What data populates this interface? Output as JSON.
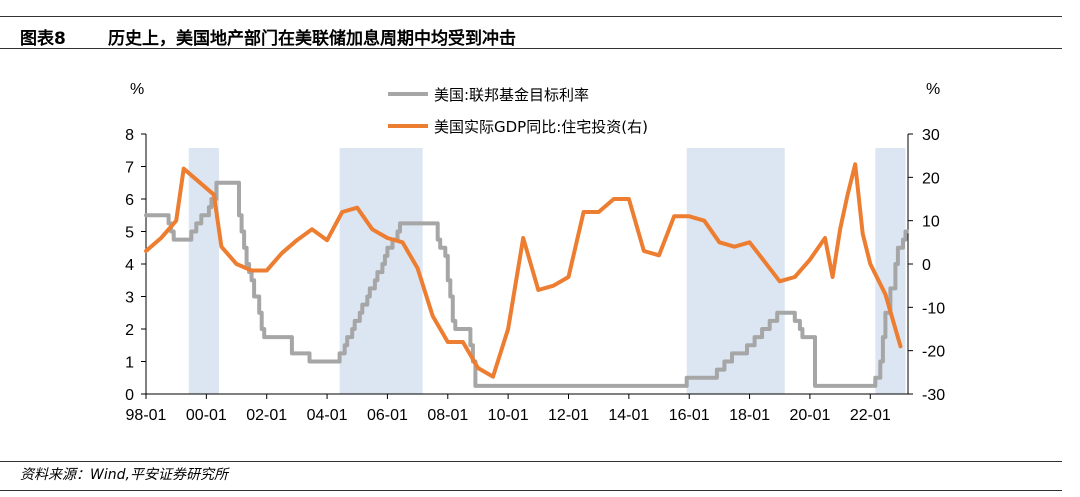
{
  "header": {
    "fig_label": "图表8",
    "title": "历史上，美国地产部门在美联储加息周期中均受到冲击"
  },
  "footer": {
    "source": "资料来源：Wind,平安证券研究所"
  },
  "colors": {
    "fed_rate": "#a6a6a6",
    "gdp_residential": "#ed7d31",
    "shade": "#dce6f2"
  },
  "chart_data": {
    "type": "line",
    "x_ticks": [
      "98-01",
      "00-01",
      "02-01",
      "04-01",
      "06-01",
      "08-01",
      "10-01",
      "12-01",
      "14-01",
      "16-01",
      "18-01",
      "20-01",
      "22-01"
    ],
    "left_axis": {
      "unit": "%",
      "range": [
        0,
        8
      ],
      "ticks": [
        "0",
        "1",
        "2",
        "3",
        "4",
        "5",
        "6",
        "7",
        "8"
      ]
    },
    "right_axis": {
      "unit": "%",
      "range": [
        -30,
        30
      ],
      "ticks": [
        "-30",
        "-20",
        "-10",
        "0",
        "10",
        "20",
        "30"
      ]
    },
    "legend_position": "top-center",
    "shaded_periods": [
      {
        "start": "1999-06",
        "end": "2000-06"
      },
      {
        "start": "2004-06",
        "end": "2007-03"
      },
      {
        "start": "2015-12",
        "end": "2019-03"
      },
      {
        "start": "2022-03",
        "end": "2023-03"
      }
    ],
    "series": [
      {
        "name": "美国:联邦基金目标利率",
        "axis": "left",
        "step": true,
        "points": [
          [
            "1998-01",
            5.5
          ],
          [
            "1998-09",
            5.5
          ],
          [
            "1998-10",
            5.25
          ],
          [
            "1998-11",
            5.0
          ],
          [
            "1998-12",
            4.75
          ],
          [
            "1999-06",
            4.75
          ],
          [
            "1999-07",
            5.0
          ],
          [
            "1999-09",
            5.25
          ],
          [
            "1999-11",
            5.5
          ],
          [
            "2000-02",
            5.75
          ],
          [
            "2000-03",
            6.0
          ],
          [
            "2000-05",
            6.5
          ],
          [
            "2001-01",
            6.5
          ],
          [
            "2001-02",
            5.5
          ],
          [
            "2001-03",
            5.0
          ],
          [
            "2001-04",
            4.5
          ],
          [
            "2001-05",
            4.0
          ],
          [
            "2001-06",
            3.75
          ],
          [
            "2001-07",
            3.5
          ],
          [
            "2001-08",
            3.0
          ],
          [
            "2001-10",
            2.5
          ],
          [
            "2001-11",
            2.0
          ],
          [
            "2001-12",
            1.75
          ],
          [
            "2002-11",
            1.25
          ],
          [
            "2003-06",
            1.0
          ],
          [
            "2004-06",
            1.25
          ],
          [
            "2004-08",
            1.5
          ],
          [
            "2004-09",
            1.75
          ],
          [
            "2004-11",
            2.0
          ],
          [
            "2004-12",
            2.25
          ],
          [
            "2005-02",
            2.5
          ],
          [
            "2005-03",
            2.75
          ],
          [
            "2005-05",
            3.0
          ],
          [
            "2005-06",
            3.25
          ],
          [
            "2005-08",
            3.5
          ],
          [
            "2005-09",
            3.75
          ],
          [
            "2005-11",
            4.0
          ],
          [
            "2005-12",
            4.25
          ],
          [
            "2006-01",
            4.5
          ],
          [
            "2006-03",
            4.75
          ],
          [
            "2006-05",
            5.0
          ],
          [
            "2006-06",
            5.25
          ],
          [
            "2007-09",
            4.75
          ],
          [
            "2007-10",
            4.5
          ],
          [
            "2007-12",
            4.25
          ],
          [
            "2008-01",
            3.5
          ],
          [
            "2008-02",
            3.0
          ],
          [
            "2008-03",
            2.25
          ],
          [
            "2008-04",
            2.0
          ],
          [
            "2008-10",
            1.5
          ],
          [
            "2008-11",
            1.0
          ],
          [
            "2008-12",
            0.25
          ],
          [
            "2015-12",
            0.5
          ],
          [
            "2016-12",
            0.75
          ],
          [
            "2017-03",
            1.0
          ],
          [
            "2017-06",
            1.25
          ],
          [
            "2017-12",
            1.5
          ],
          [
            "2018-03",
            1.75
          ],
          [
            "2018-06",
            2.0
          ],
          [
            "2018-09",
            2.25
          ],
          [
            "2018-12",
            2.5
          ],
          [
            "2019-07",
            2.25
          ],
          [
            "2019-09",
            2.0
          ],
          [
            "2019-10",
            1.75
          ],
          [
            "2020-03",
            0.25
          ],
          [
            "2022-03",
            0.5
          ],
          [
            "2022-05",
            1.0
          ],
          [
            "2022-06",
            1.75
          ],
          [
            "2022-07",
            2.5
          ],
          [
            "2022-09",
            3.25
          ],
          [
            "2022-11",
            4.0
          ],
          [
            "2022-12",
            4.5
          ],
          [
            "2023-02",
            4.75
          ],
          [
            "2023-03",
            5.0
          ]
        ]
      },
      {
        "name": "美国实际GDP同比:住宅投资(右)",
        "axis": "right",
        "step": false,
        "points": [
          [
            "1998-01",
            3
          ],
          [
            "1998-07",
            6
          ],
          [
            "1999-01",
            10
          ],
          [
            "1999-04",
            22
          ],
          [
            "1999-10",
            19
          ],
          [
            "2000-04",
            16
          ],
          [
            "2000-07",
            4
          ],
          [
            "2001-01",
            0
          ],
          [
            "2001-07",
            -1.5
          ],
          [
            "2002-01",
            -1.5
          ],
          [
            "2002-07",
            2.5
          ],
          [
            "2003-01",
            5.5
          ],
          [
            "2003-07",
            8
          ],
          [
            "2004-01",
            5.5
          ],
          [
            "2004-07",
            12
          ],
          [
            "2005-01",
            13
          ],
          [
            "2005-07",
            8
          ],
          [
            "2006-01",
            6
          ],
          [
            "2006-07",
            5
          ],
          [
            "2007-01",
            -1
          ],
          [
            "2007-07",
            -12
          ],
          [
            "2008-01",
            -18
          ],
          [
            "2008-07",
            -18
          ],
          [
            "2009-01",
            -24
          ],
          [
            "2009-07",
            -26
          ],
          [
            "2010-01",
            -15
          ],
          [
            "2010-07",
            6
          ],
          [
            "2011-01",
            -6
          ],
          [
            "2011-07",
            -5
          ],
          [
            "2012-01",
            -3
          ],
          [
            "2012-07",
            12
          ],
          [
            "2013-01",
            12
          ],
          [
            "2013-07",
            15
          ],
          [
            "2014-01",
            15
          ],
          [
            "2014-07",
            3
          ],
          [
            "2015-01",
            2
          ],
          [
            "2015-07",
            11
          ],
          [
            "2016-01",
            11
          ],
          [
            "2016-07",
            10
          ],
          [
            "2017-01",
            5
          ],
          [
            "2017-07",
            4
          ],
          [
            "2018-01",
            5
          ],
          [
            "2018-07",
            0.5
          ],
          [
            "2019-01",
            -4
          ],
          [
            "2019-07",
            -3
          ],
          [
            "2020-01",
            1
          ],
          [
            "2020-07",
            6
          ],
          [
            "2020-10",
            -3
          ],
          [
            "2021-01",
            8
          ],
          [
            "2021-04",
            16
          ],
          [
            "2021-07",
            23
          ],
          [
            "2021-10",
            7
          ],
          [
            "2022-01",
            0
          ],
          [
            "2022-07",
            -7
          ],
          [
            "2023-01",
            -19
          ]
        ]
      }
    ]
  }
}
